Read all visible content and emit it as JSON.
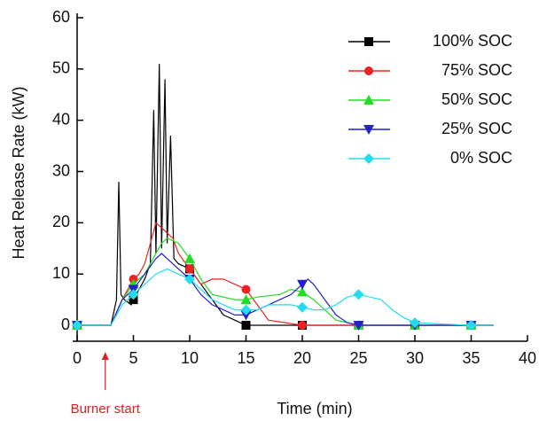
{
  "chart_data": {
    "type": "line",
    "x_label": "Time (min)",
    "y_label": "Heat Release Rate (kW)",
    "xlim": [
      0,
      40
    ],
    "ylim": [
      0,
      60
    ],
    "xticks": [
      0,
      5,
      10,
      15,
      20,
      25,
      30,
      35,
      40
    ],
    "yticks": [
      0,
      10,
      20,
      30,
      40,
      50,
      60
    ],
    "legend": "upper right",
    "annotation": {
      "text": "Burner start",
      "x": 2.5,
      "color": "#e02020"
    },
    "series": [
      {
        "name": "100% SOC",
        "color": "#000000",
        "marker": "square",
        "x": [
          0,
          3,
          3.5,
          3.7,
          3.9,
          4.2,
          4.8,
          5,
          5.5,
          6,
          6.5,
          6.8,
          7.0,
          7.3,
          7.5,
          7.8,
          8.0,
          8.3,
          8.6,
          9,
          10,
          11,
          12,
          13,
          14,
          15,
          16,
          20,
          25,
          30,
          35,
          37
        ],
        "values": [
          0,
          0,
          5,
          28,
          6,
          5,
          4,
          5,
          7,
          9,
          12,
          42,
          14,
          51,
          15,
          48,
          16,
          37,
          13,
          12,
          11,
          8,
          5,
          2,
          1,
          0,
          0,
          0,
          0,
          0,
          0,
          0
        ]
      },
      {
        "name": "75% SOC",
        "color": "#ee2222",
        "marker": "circle",
        "x": [
          0,
          3,
          4,
          5,
          5.5,
          6,
          6.5,
          7,
          7.5,
          8,
          8.5,
          9,
          10,
          11,
          12,
          13,
          14,
          15,
          16,
          17,
          20,
          25,
          30,
          35,
          37
        ],
        "values": [
          0,
          0,
          5,
          9,
          10,
          12,
          16,
          20,
          19,
          18,
          17,
          14,
          11,
          8,
          9,
          9,
          8,
          7,
          4,
          1,
          0,
          0,
          0,
          0,
          0
        ]
      },
      {
        "name": "50% SOC",
        "color": "#22dd22",
        "marker": "triangle-up",
        "x": [
          0,
          3,
          4,
          5,
          6,
          7,
          7.5,
          8,
          9,
          10,
          11,
          12,
          14,
          15,
          16,
          18,
          19,
          20,
          21,
          22,
          23,
          25,
          30,
          32,
          35,
          37
        ],
        "values": [
          0,
          0,
          5,
          8,
          10,
          14,
          16,
          17,
          16,
          13,
          9,
          6,
          5,
          5,
          5.5,
          6,
          7,
          6.5,
          5,
          3,
          1,
          0,
          0,
          0,
          0,
          0
        ]
      },
      {
        "name": "25% SOC",
        "color": "#2222cc",
        "marker": "triangle-down",
        "x": [
          0,
          3,
          4,
          5,
          6,
          7,
          7.5,
          8,
          9,
          10,
          11,
          12,
          13,
          14,
          15,
          16,
          17,
          18,
          19,
          20,
          20.5,
          21,
          22,
          23,
          24,
          25,
          30,
          35,
          37
        ],
        "values": [
          0,
          0,
          5,
          7,
          10,
          13,
          14,
          13,
          11,
          9,
          6,
          4,
          3,
          2,
          2,
          3,
          4,
          5,
          6,
          8,
          9,
          8,
          5,
          2,
          0.5,
          0,
          0,
          0,
          0
        ]
      },
      {
        "name": "0% SOC",
        "color": "#22ddee",
        "marker": "diamond",
        "x": [
          0,
          3,
          4,
          5,
          6,
          7,
          8,
          9,
          10,
          11,
          12,
          13,
          14,
          15,
          16,
          17,
          18,
          19,
          20,
          21,
          22,
          23,
          24,
          25,
          26,
          27,
          28,
          29,
          30,
          35,
          37
        ],
        "values": [
          0,
          0,
          4,
          6,
          8,
          10,
          11,
          10,
          9,
          7,
          5,
          4,
          3,
          3,
          3,
          4,
          4,
          4,
          3.5,
          3,
          3,
          4,
          5.5,
          6,
          5.5,
          5,
          3,
          1.5,
          0.5,
          0,
          0
        ]
      }
    ]
  }
}
